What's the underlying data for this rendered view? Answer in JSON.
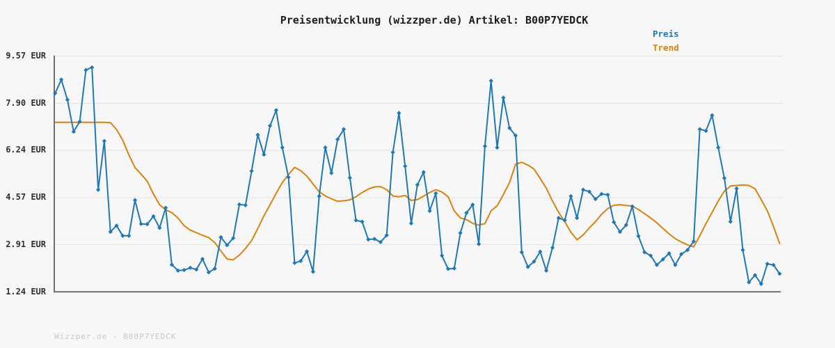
{
  "title": "Preisentwicklung (wizzper.de) Artikel: B00P7YEDCK",
  "footer": "Wizzper.de - B00P7YEDCK",
  "legend": [
    {
      "label": "Preis",
      "color": "#1f77b4"
    },
    {
      "label": "Trend",
      "color": "#d9820f"
    }
  ],
  "y_axis": {
    "tick_labels": [
      "9.57 EUR",
      "7.90 EUR",
      "6.24 EUR",
      "4.57 EUR",
      "2.91 EUR",
      "1.24 EUR"
    ],
    "tick_values": [
      9.57,
      7.9,
      6.24,
      4.57,
      2.91,
      1.24
    ]
  },
  "chart_data": {
    "type": "line",
    "title": "Preisentwicklung (wizzper.de) Artikel: B00P7YEDCK",
    "xlabel": "",
    "ylabel": "EUR",
    "unit": "EUR",
    "ylim": [
      1.24,
      9.57
    ],
    "grid": "horizontal",
    "legend_position": "top-right",
    "series": [
      {
        "name": "Preis",
        "color": "#1f77b4",
        "marker": "diamond",
        "values": [
          8.26,
          8.74,
          8.03,
          6.9,
          7.26,
          9.08,
          9.17,
          4.85,
          6.57,
          3.36,
          3.58,
          3.22,
          3.22,
          4.48,
          3.64,
          3.63,
          3.91,
          3.5,
          4.21,
          2.2,
          1.99,
          2.01,
          2.09,
          2.03,
          2.4,
          1.93,
          2.06,
          3.17,
          2.89,
          3.14,
          4.33,
          4.3,
          5.51,
          6.79,
          6.09,
          7.11,
          7.66,
          6.34,
          5.29,
          2.26,
          2.33,
          2.67,
          1.95,
          4.62,
          6.34,
          5.44,
          6.63,
          6.99,
          5.27,
          3.77,
          3.72,
          3.09,
          3.11,
          3.0,
          3.24,
          6.17,
          7.56,
          5.68,
          3.66,
          5.02,
          5.47,
          4.1,
          4.72,
          2.52,
          2.05,
          2.07,
          3.32,
          4.03,
          4.32,
          2.93,
          6.39,
          8.7,
          6.34,
          8.1,
          7.03,
          6.76,
          2.64,
          2.12,
          2.31,
          2.66,
          1.99,
          2.8,
          3.85,
          3.77,
          4.62,
          3.85,
          4.85,
          4.78,
          4.52,
          4.7,
          4.67,
          3.7,
          3.36,
          3.6,
          4.26,
          3.21,
          2.64,
          2.52,
          2.19,
          2.39,
          2.6,
          2.19,
          2.57,
          2.72,
          3.02,
          6.99,
          6.93,
          7.48,
          6.34,
          5.26,
          3.72,
          4.89,
          2.72,
          1.58,
          1.83,
          1.52,
          2.23,
          2.19,
          1.88
        ]
      },
      {
        "name": "Trend",
        "color": "#d9820f",
        "marker": "none",
        "values": [
          7.23,
          7.23,
          7.23,
          7.23,
          7.23,
          7.23,
          7.23,
          7.23,
          7.23,
          7.22,
          6.98,
          6.6,
          6.08,
          5.63,
          5.4,
          5.15,
          4.7,
          4.32,
          4.14,
          4.04,
          3.85,
          3.58,
          3.42,
          3.33,
          3.24,
          3.16,
          2.98,
          2.68,
          2.4,
          2.37,
          2.54,
          2.77,
          3.05,
          3.48,
          3.93,
          4.32,
          4.72,
          5.1,
          5.38,
          5.64,
          5.52,
          5.33,
          5.05,
          4.78,
          4.63,
          4.53,
          4.44,
          4.46,
          4.49,
          4.6,
          4.75,
          4.87,
          4.95,
          4.96,
          4.85,
          4.63,
          4.6,
          4.65,
          4.47,
          4.5,
          4.62,
          4.75,
          4.85,
          4.77,
          4.6,
          4.1,
          3.85,
          3.79,
          3.66,
          3.6,
          3.65,
          4.1,
          4.28,
          4.68,
          5.1,
          5.75,
          5.82,
          5.72,
          5.58,
          5.25,
          4.9,
          4.45,
          4.05,
          3.72,
          3.35,
          3.08,
          3.25,
          3.5,
          3.72,
          3.98,
          4.18,
          4.3,
          4.32,
          4.29,
          4.27,
          4.15,
          4.0,
          3.85,
          3.68,
          3.48,
          3.29,
          3.12,
          3.0,
          2.9,
          2.83,
          3.22,
          3.65,
          4.05,
          4.45,
          4.8,
          4.98,
          5.0,
          5.02,
          5.0,
          4.88,
          4.5,
          4.1,
          3.55,
          2.95
        ]
      }
    ]
  }
}
